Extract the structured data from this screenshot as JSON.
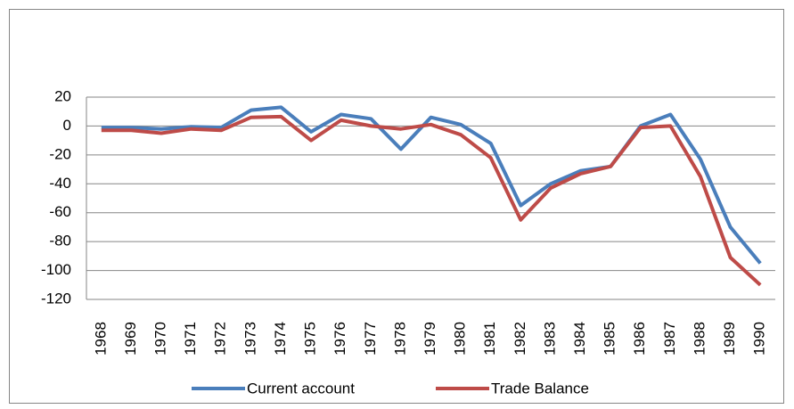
{
  "chart_data": {
    "type": "line",
    "categories": [
      "1968",
      "1969",
      "1970",
      "1971",
      "1972",
      "1973",
      "1974",
      "1975",
      "1976",
      "1977",
      "1978",
      "1979",
      "1980",
      "1981",
      "1982",
      "1983",
      "1984",
      "1985",
      "1986",
      "1987",
      "1988",
      "1989",
      "1990"
    ],
    "series": [
      {
        "name": "Current account",
        "color": "#4a7ebb",
        "values": [
          -1,
          -1,
          -2,
          -0.5,
          -1,
          11,
          13,
          -4,
          8,
          5,
          -16,
          6,
          1,
          -12,
          -55,
          -40,
          -31,
          -28,
          0,
          8,
          -23,
          -70,
          -95
        ]
      },
      {
        "name": "Trade Balance",
        "color": "#be4b48",
        "values": [
          -3,
          -3,
          -5,
          -2,
          -3,
          6,
          6.5,
          -10,
          4,
          0,
          -2,
          1,
          -6,
          -22,
          -65,
          -43,
          -33,
          -28,
          -1,
          0,
          -35,
          -91,
          -110
        ]
      }
    ],
    "ylim": [
      -120,
      20
    ],
    "yticks": [
      20,
      0,
      -20,
      -40,
      -60,
      -80,
      -100,
      -120
    ],
    "grid": true,
    "legend": "bottom"
  }
}
